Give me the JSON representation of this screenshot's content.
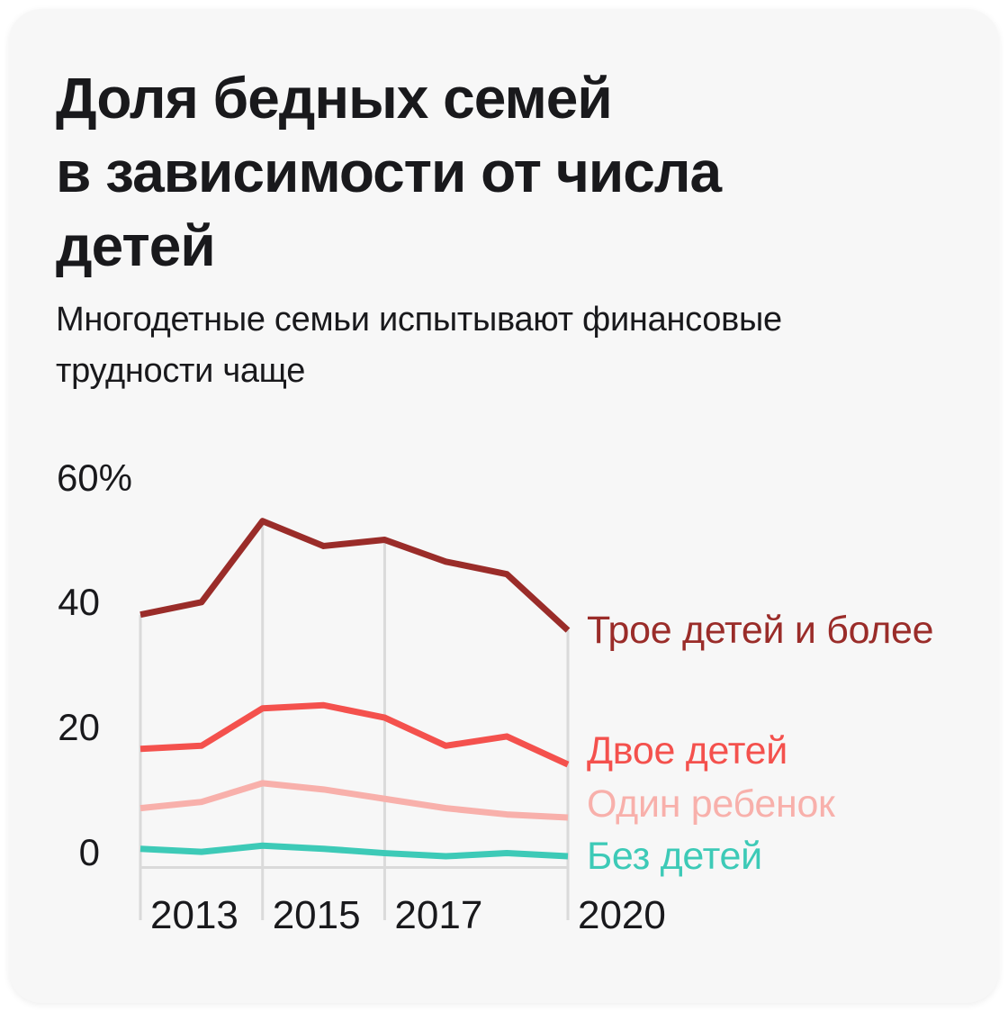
{
  "card": {
    "title_lines": [
      "Доля бедных семей",
      "в зависимости от числа",
      "детей"
    ],
    "subtitle_lines": [
      "Многодетные семьи испытывают финансовые",
      "трудности чаще"
    ]
  },
  "colors": {
    "card_background": "#f7f7f7",
    "text": "#19191c",
    "grid": "#dadada"
  },
  "chart_data": {
    "type": "line",
    "title": "Доля бедных семей в зависимости от числа детей",
    "subtitle": "Многодетные семьи испытывают финансовые трудности чаще",
    "x": [
      2013,
      2014,
      2015,
      2016,
      2017,
      2018,
      2019,
      2020
    ],
    "xlim": [
      2013,
      2020
    ],
    "ylim": [
      0,
      60
    ],
    "ylabel": "%",
    "grid": "vertical drop lines at labeled years only, baseline at 0",
    "legend_position": "right of each line end",
    "x_ticks": [
      {
        "year": 2013,
        "label": "2013"
      },
      {
        "year": 2015,
        "label": "2015"
      },
      {
        "year": 2017,
        "label": "2017"
      },
      {
        "year": 2020,
        "label": "2020"
      }
    ],
    "y_ticks": [
      {
        "value": 60,
        "label": "60%"
      },
      {
        "value": 40,
        "label": "40"
      },
      {
        "value": 20,
        "label": "20"
      },
      {
        "value": 0,
        "label": "0"
      }
    ],
    "series": [
      {
        "name": "Трое детей и более",
        "color": "#9a2c29",
        "values": [
          40.5,
          42.5,
          55.5,
          51.5,
          52.5,
          49,
          47,
          38
        ]
      },
      {
        "name": "Двое детей",
        "color": "#f4514d",
        "values": [
          19,
          19.5,
          25.5,
          26,
          24,
          19.5,
          21,
          16.5
        ]
      },
      {
        "name": "Один ребенок",
        "color": "#f8b0ab",
        "values": [
          9.5,
          10.5,
          13.5,
          12.5,
          11,
          9.5,
          8.5,
          8
        ]
      },
      {
        "name": "Без детей",
        "color": "#3dcab7",
        "values": [
          3,
          2.5,
          3.5,
          3,
          2.3,
          1.8,
          2.3,
          1.8
        ]
      }
    ]
  }
}
